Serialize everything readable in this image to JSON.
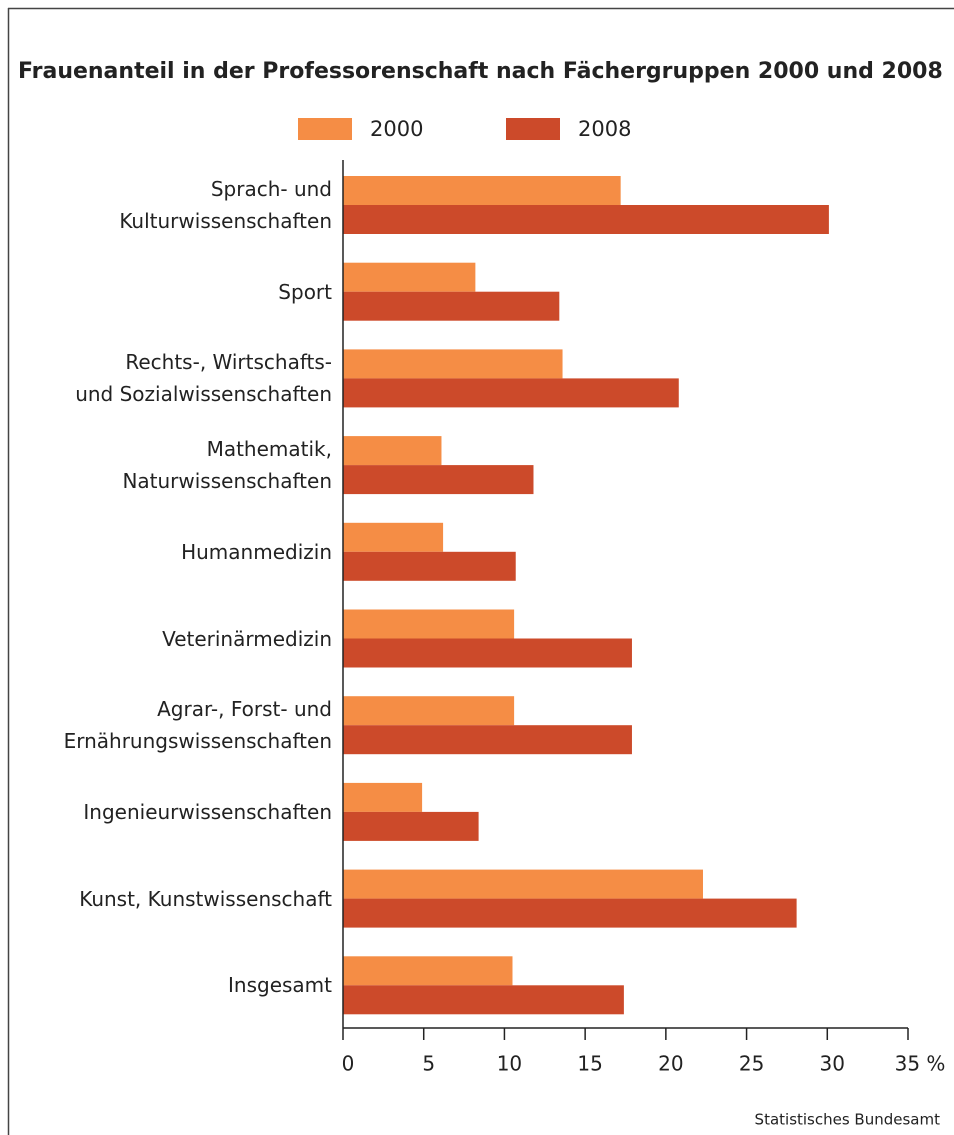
{
  "chart_data": {
    "type": "bar",
    "orientation": "horizontal",
    "title": "Frauenanteil in der Professorenschaft nach Fächergruppen 2000 und 2008",
    "categories": [
      "Sprach- und\nKulturwissenschaften",
      "Sport",
      "Rechts-, Wirtschafts-\nund Sozialwissenschaften",
      "Mathematik,\nNaturwissenschaften",
      "Humanmedizin",
      "Veterinärmedizin",
      "Agrar-, Forst- und\nErnährungswissenschaften",
      "Ingenieurwissenschaften",
      "Kunst, Kunstwissenschaft",
      "Insgesamt"
    ],
    "series": [
      {
        "name": "2000",
        "color": "#f58d45",
        "values": [
          17.2,
          8.2,
          13.6,
          6.1,
          6.2,
          10.6,
          10.6,
          4.9,
          22.3,
          10.5
        ]
      },
      {
        "name": "2008",
        "color": "#cc4a2a",
        "values": [
          30.1,
          13.4,
          20.8,
          11.8,
          10.7,
          17.9,
          17.9,
          8.4,
          28.1,
          17.4
        ]
      }
    ],
    "xlim": [
      0,
      35
    ],
    "xticks": [
      0,
      5,
      10,
      15,
      20,
      25,
      30,
      {
        "value": 35,
        "label": "35 %"
      }
    ],
    "legend": "top",
    "source": "Statistisches Bundesamt"
  }
}
